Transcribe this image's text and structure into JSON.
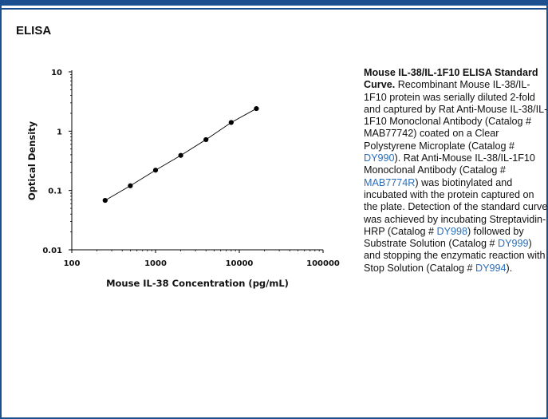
{
  "section": {
    "title": "ELISA"
  },
  "chart_data": {
    "type": "scatter",
    "xscale": "log",
    "yscale": "log",
    "xlim": [
      100,
      100000
    ],
    "ylim": [
      0.01,
      10
    ],
    "xticks": [
      "100",
      "1000",
      "10000",
      "100000"
    ],
    "yticks": [
      "0.01",
      "0.1",
      "1",
      "10"
    ],
    "xtick_values": [
      100,
      1000,
      10000,
      100000
    ],
    "ytick_values": [
      0.01,
      0.1,
      1,
      10
    ],
    "xlabel": "Mouse IL-38 Concentration (pg/mL)",
    "ylabel": "Optical Density",
    "grid": false,
    "x": [
      250,
      500,
      1000,
      2000,
      4000,
      8000,
      16000
    ],
    "y": [
      0.068,
      0.12,
      0.22,
      0.39,
      0.72,
      1.4,
      2.4
    ],
    "fit_line": true,
    "marker_color": "#000000",
    "line_color": "#000000"
  },
  "caption": {
    "title": "Mouse IL-38/IL-1F10 ELISA Standard Curve.",
    "text_1": " Recombinant Mouse IL-38/IL-1F10 protein was serially diluted 2-fold and captured by Rat Anti-Mouse IL-38/IL-1F10 Monoclonal Antibody (Catalog # MAB77742) coated on a Clear Polystyrene Microplate (Catalog # ",
    "link_1": "DY990",
    "text_2": "). Rat Anti-Mouse IL-38/IL-1F10 Monoclonal Antibody (Catalog # ",
    "link_2": "MAB7774R",
    "text_3": ") was biotinylated and incubated with the protein captured on the plate. Detection of the standard curve was achieved by incubating Streptavidin-HRP (Catalog # ",
    "link_3": "DY998",
    "text_4": ") followed by Substrate Solution (Catalog # ",
    "link_4": "DY999",
    "text_5": ") and stopping the enzymatic reaction with Stop Solution (Catalog # ",
    "link_5": "DY994",
    "text_6": ")."
  },
  "colors": {
    "frame": "#1b4f8f",
    "link": "#2a6ebb"
  }
}
